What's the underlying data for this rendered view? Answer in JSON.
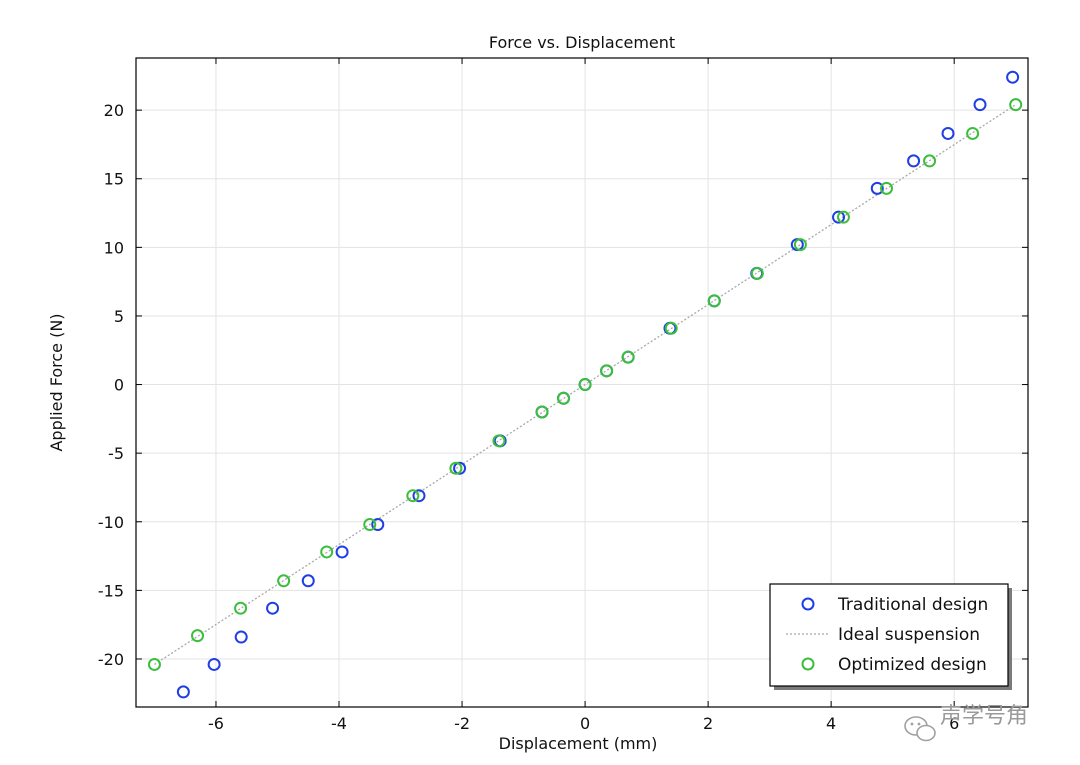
{
  "chart_data": {
    "type": "scatter",
    "title": "Force vs. Displacement",
    "xlabel": "Displacement (mm)",
    "ylabel": "Applied Force (N)",
    "xlim": [
      -7.3,
      7.2
    ],
    "ylim": [
      -23.5,
      23.8
    ],
    "xticks": [
      -6,
      -4,
      -2,
      0,
      2,
      4,
      6
    ],
    "yticks": [
      -20,
      -15,
      -10,
      -5,
      0,
      5,
      10,
      15,
      20
    ],
    "grid": true,
    "legend_position": "bottom-right",
    "series": [
      {
        "name": "Traditional design",
        "kind": "scatter",
        "marker": "open-circle",
        "color": "#1f3ee6",
        "points": [
          [
            -6.53,
            -22.4
          ],
          [
            -6.03,
            -20.4
          ],
          [
            -5.59,
            -18.4
          ],
          [
            -5.08,
            -16.3
          ],
          [
            -4.5,
            -14.3
          ],
          [
            -3.95,
            -12.2
          ],
          [
            -3.37,
            -10.2
          ],
          [
            -2.7,
            -8.1
          ],
          [
            -2.04,
            -6.1
          ],
          [
            -1.38,
            -4.1
          ],
          [
            -0.7,
            -2.0
          ],
          [
            -0.35,
            -1.0
          ],
          [
            0.0,
            0.0
          ],
          [
            0.35,
            1.0
          ],
          [
            0.7,
            2.0
          ],
          [
            1.38,
            4.1
          ],
          [
            2.1,
            6.1
          ],
          [
            2.79,
            8.1
          ],
          [
            3.45,
            10.2
          ],
          [
            4.12,
            12.2
          ],
          [
            4.75,
            14.3
          ],
          [
            5.34,
            16.3
          ],
          [
            5.9,
            18.3
          ],
          [
            6.42,
            20.4
          ],
          [
            6.95,
            22.4
          ]
        ]
      },
      {
        "name": "Ideal suspension",
        "kind": "line",
        "line_style": "dotted",
        "color": "#a8a8a8",
        "points": [
          [
            -7.0,
            -20.4
          ],
          [
            7.0,
            20.4
          ]
        ]
      },
      {
        "name": "Optimized design",
        "kind": "scatter",
        "marker": "open-circle",
        "color": "#3bbf3b",
        "points": [
          [
            -7.0,
            -20.4
          ],
          [
            -6.3,
            -18.3
          ],
          [
            -5.6,
            -16.3
          ],
          [
            -4.9,
            -14.3
          ],
          [
            -4.2,
            -12.2
          ],
          [
            -3.5,
            -10.2
          ],
          [
            -2.8,
            -8.1
          ],
          [
            -2.1,
            -6.1
          ],
          [
            -1.4,
            -4.1
          ],
          [
            -0.7,
            -2.0
          ],
          [
            -0.35,
            -1.0
          ],
          [
            0.0,
            0.0
          ],
          [
            0.35,
            1.0
          ],
          [
            0.7,
            2.0
          ],
          [
            1.4,
            4.1
          ],
          [
            2.1,
            6.1
          ],
          [
            2.8,
            8.1
          ],
          [
            3.5,
            10.2
          ],
          [
            4.2,
            12.2
          ],
          [
            4.9,
            14.3
          ],
          [
            5.6,
            16.3
          ],
          [
            6.3,
            18.3
          ],
          [
            7.0,
            20.4
          ]
        ]
      }
    ]
  },
  "watermark": {
    "text": "声学号角",
    "icon": "wechat-icon"
  }
}
